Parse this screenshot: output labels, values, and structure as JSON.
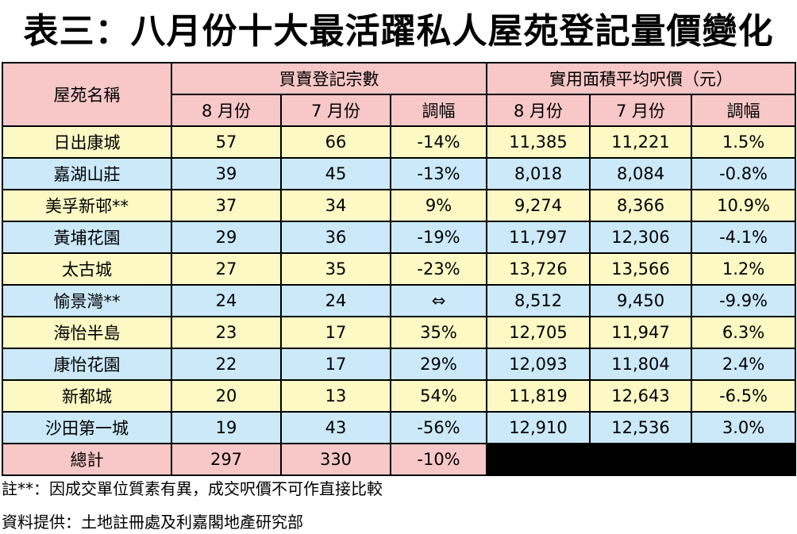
{
  "title": "表三：八月份十大最活躍私人屋苑登記量價變化",
  "headers": {
    "estate": "屋苑名稱",
    "group_volume": "買賣登記宗數",
    "group_price": "實用面積平均呎價（元）",
    "aug": "8 月份",
    "jul": "7 月份",
    "change": "調幅"
  },
  "rows": [
    {
      "name": "日出康城",
      "vol_aug": "57",
      "vol_jul": "66",
      "vol_chg": "-14%",
      "price_aug": "11,385",
      "price_jul": "11,221",
      "price_chg": "1.5%"
    },
    {
      "name": "嘉湖山莊",
      "vol_aug": "39",
      "vol_jul": "45",
      "vol_chg": "-13%",
      "price_aug": "8,018",
      "price_jul": "8,084",
      "price_chg": "-0.8%"
    },
    {
      "name": "美孚新邨**",
      "vol_aug": "37",
      "vol_jul": "34",
      "vol_chg": "9%",
      "price_aug": "9,274",
      "price_jul": "8,366",
      "price_chg": "10.9%"
    },
    {
      "name": "黃埔花園",
      "vol_aug": "29",
      "vol_jul": "36",
      "vol_chg": "-19%",
      "price_aug": "11,797",
      "price_jul": "12,306",
      "price_chg": "-4.1%"
    },
    {
      "name": "太古城",
      "vol_aug": "27",
      "vol_jul": "35",
      "vol_chg": "-23%",
      "price_aug": "13,726",
      "price_jul": "13,566",
      "price_chg": "1.2%"
    },
    {
      "name": "愉景灣**",
      "vol_aug": "24",
      "vol_jul": "24",
      "vol_chg": "⇔",
      "price_aug": "8,512",
      "price_jul": "9,450",
      "price_chg": "-9.9%"
    },
    {
      "name": "海怡半島",
      "vol_aug": "23",
      "vol_jul": "17",
      "vol_chg": "35%",
      "price_aug": "12,705",
      "price_jul": "11,947",
      "price_chg": "6.3%"
    },
    {
      "name": "康怡花園",
      "vol_aug": "22",
      "vol_jul": "17",
      "vol_chg": "29%",
      "price_aug": "12,093",
      "price_jul": "11,804",
      "price_chg": "2.4%"
    },
    {
      "name": "新都城",
      "vol_aug": "20",
      "vol_jul": "13",
      "vol_chg": "54%",
      "price_aug": "11,819",
      "price_jul": "12,643",
      "price_chg": "-6.5%"
    },
    {
      "name": "沙田第一城",
      "vol_aug": "19",
      "vol_jul": "43",
      "vol_chg": "-56%",
      "price_aug": "12,910",
      "price_jul": "12,536",
      "price_chg": "3.0%"
    }
  ],
  "total": {
    "label": "總計",
    "vol_aug": "297",
    "vol_jul": "330",
    "vol_chg": "-10%"
  },
  "notes": {
    "footnote": "註**：因成交單位質素有異，成交呎價不可作直接比較",
    "source": "資料提供：土地註冊處及利嘉閣地產研究部"
  },
  "colors": {
    "header": "#f8c8c8",
    "row_odd": "#fdf9c4",
    "row_even": "#cbe9f9",
    "total_pad": "#000000"
  }
}
